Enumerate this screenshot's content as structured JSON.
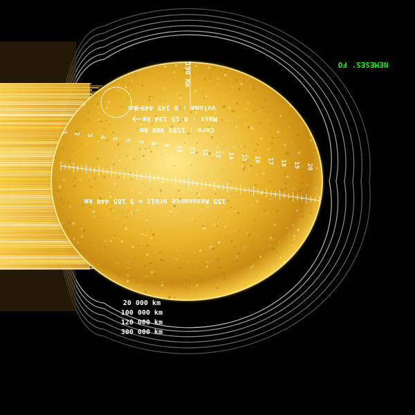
{
  "hud": {
    "corner_label": "NEMESES' FO",
    "stats": [
      "Volume : 0 145 449 km",
      "Mass : 0 15 134 km",
      "Core : 1593 000 km"
    ],
    "top_label": "190 Km",
    "scale_ticks": [
      "1",
      "2",
      "3",
      "4",
      "5",
      "6",
      "7",
      "8",
      "9",
      "10",
      "11",
      "12",
      "13",
      "14",
      "15",
      "16",
      "17",
      "18",
      "19",
      "20"
    ],
    "caption": "155 Resonance orbit = 5 185 440 km",
    "ring_labels": [
      "20 000 km",
      "100 000 km",
      "120 000 km",
      "300 000 km"
    ]
  },
  "colors": {
    "background": "#000000",
    "sun_core": "#ffe066",
    "sun_mid": "#d9a41e",
    "sun_edge": "#f5c431",
    "ring": "#cfcfcf",
    "hud_text": "#ffffff",
    "hud_green": "#1ee81e"
  }
}
